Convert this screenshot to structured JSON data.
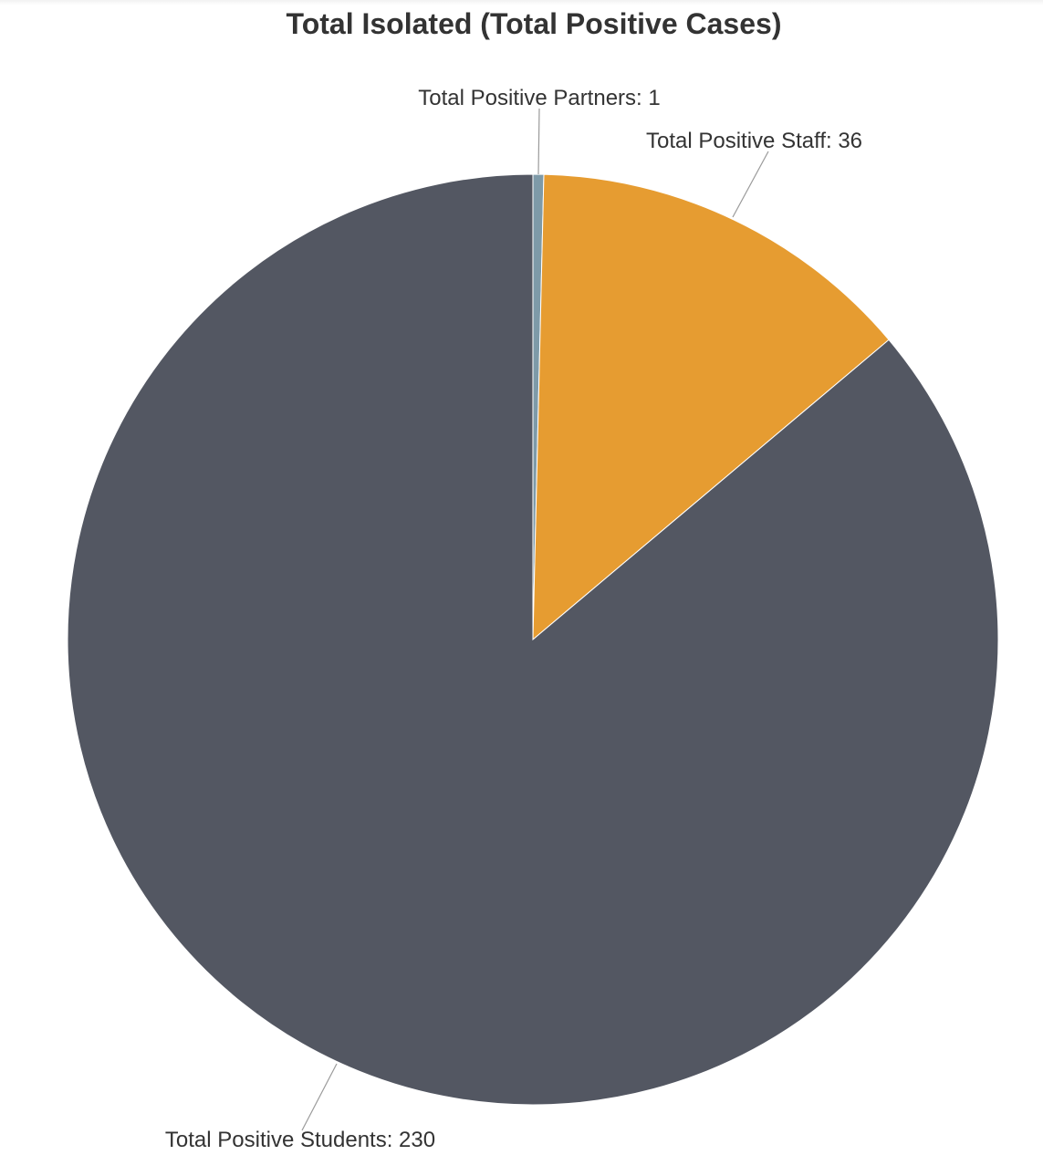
{
  "chart_data": {
    "type": "pie",
    "title": "Total Isolated (Total Positive Cases)",
    "slices": [
      {
        "name": "Total Positive Partners",
        "value": 1,
        "label": "Total Positive Partners: 1",
        "color": "#7e9aa8"
      },
      {
        "name": "Total Positive Staff",
        "value": 36,
        "label": "Total Positive Staff: 36",
        "color": "#e69c31"
      },
      {
        "name": "Total Positive Students",
        "value": 230,
        "label": "Total Positive Students: 230",
        "color": "#535762"
      }
    ],
    "start_angle": "12 o'clock",
    "direction": "clockwise",
    "legend": "none"
  }
}
